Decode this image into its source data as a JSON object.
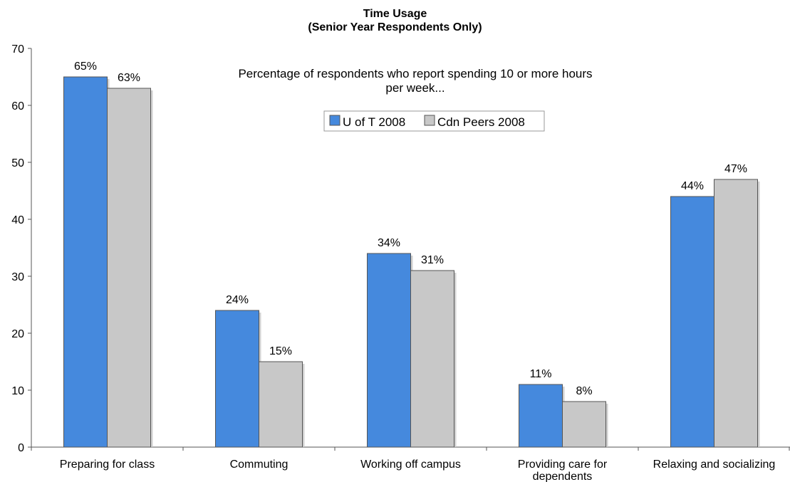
{
  "chart_data": {
    "type": "bar",
    "title": "Time Usage",
    "subtitle": "(Senior Year Respondents Only)",
    "annotation": [
      "Percentage of respondents who report spending 10 or more hours",
      "per week..."
    ],
    "categories": [
      "Preparing for class",
      "Commuting",
      "Working off campus",
      "Providing care for dependents",
      "Relaxing and socializing"
    ],
    "category_label_lines": [
      [
        "Preparing for class"
      ],
      [
        "Commuting"
      ],
      [
        "Working off campus"
      ],
      [
        "Providing care for",
        "dependents"
      ],
      [
        "Relaxing and socializing"
      ]
    ],
    "series": [
      {
        "name": "U of T 2008",
        "values": [
          65,
          24,
          34,
          11,
          44
        ],
        "labels": [
          "65%",
          "24%",
          "34%",
          "11%",
          "44%"
        ],
        "color": "#4589DD"
      },
      {
        "name": "Cdn Peers 2008",
        "values": [
          63,
          15,
          31,
          8,
          47
        ],
        "labels": [
          "63%",
          "15%",
          "31%",
          "8%",
          "47%"
        ],
        "color": "#C8C8C8"
      }
    ],
    "ylim": [
      0,
      70
    ],
    "yticks": [
      0,
      10,
      20,
      30,
      40,
      50,
      60,
      70
    ],
    "ytick_labels": [
      "0",
      "10",
      "20",
      "30",
      "40",
      "50",
      "60",
      "70"
    ],
    "xlabel": "",
    "ylabel": "",
    "legend": "top-center",
    "grid": false
  }
}
